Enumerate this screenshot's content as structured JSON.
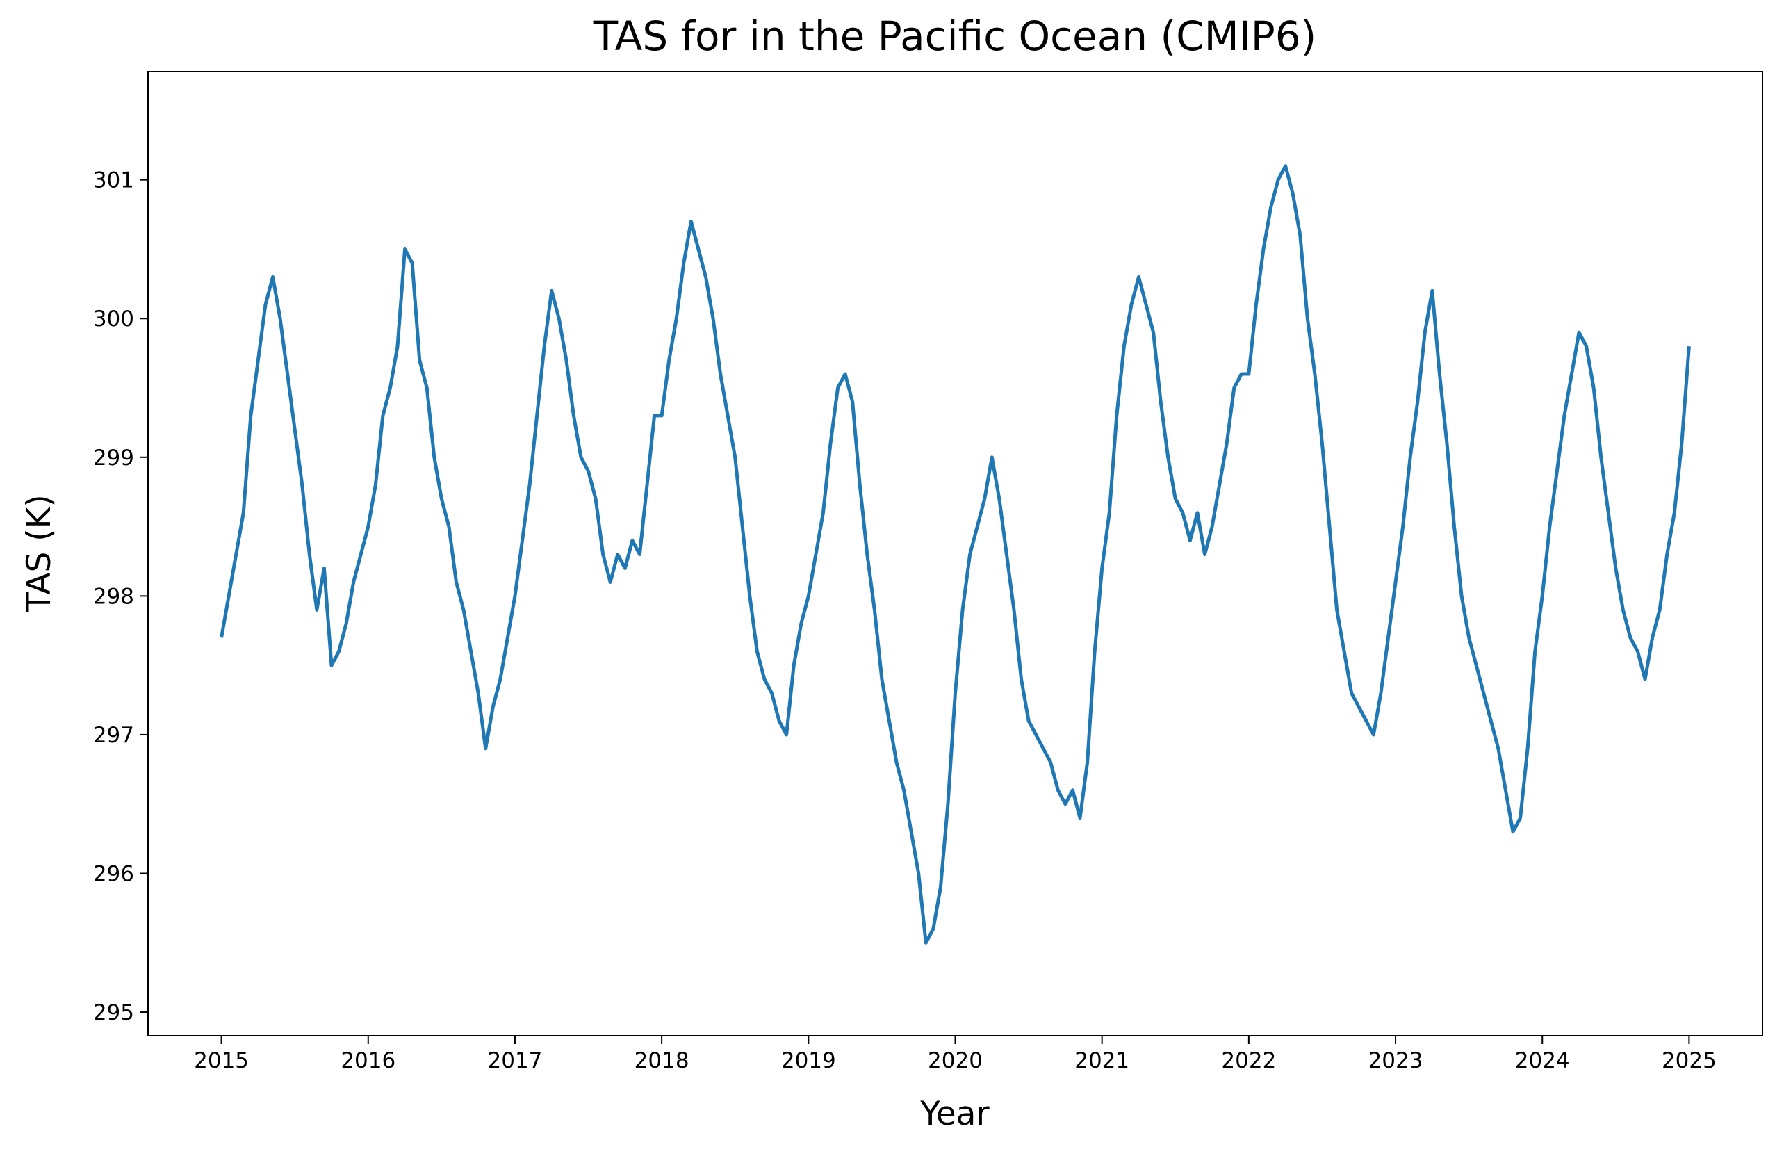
{
  "chart_data": {
    "type": "line",
    "title": "TAS for in the Pacific Ocean (CMIP6)",
    "xlabel": "Year",
    "ylabel": "TAS (K)",
    "xlim": [
      2014.5,
      2025.5
    ],
    "xticks": [
      2015,
      2016,
      2017,
      2018,
      2019,
      2020,
      2021,
      2022,
      2023,
      2024,
      2025
    ],
    "ylim": [
      294.83,
      301.78
    ],
    "yticks": [
      295,
      296,
      297,
      298,
      299,
      300,
      301
    ],
    "grid": false,
    "series": [
      {
        "name": "TAS",
        "color": "#1f77b4",
        "x": [
          2015,
          2015.05,
          2015.1,
          2015.15,
          2015.2,
          2015.25,
          2015.3,
          2015.35,
          2015.4,
          2015.45,
          2015.5,
          2015.55,
          2015.6,
          2015.65,
          2015.7,
          2015.75,
          2015.8,
          2015.85,
          2015.9,
          2015.95,
          2016,
          2016.05,
          2016.1,
          2016.15,
          2016.2,
          2016.25,
          2016.3,
          2016.35,
          2016.4,
          2016.45,
          2016.5,
          2016.55,
          2016.6,
          2016.65,
          2016.7,
          2016.75,
          2016.8,
          2016.85,
          2016.9,
          2016.95,
          2017,
          2017.05,
          2017.1,
          2017.15,
          2017.2,
          2017.25,
          2017.3,
          2017.35,
          2017.4,
          2017.45,
          2017.5,
          2017.55,
          2017.6,
          2017.65,
          2017.7,
          2017.75,
          2017.8,
          2017.85,
          2017.9,
          2017.95,
          2018,
          2018.05,
          2018.1,
          2018.15,
          2018.2,
          2018.25,
          2018.3,
          2018.35,
          2018.4,
          2018.45,
          2018.5,
          2018.55,
          2018.6,
          2018.65,
          2018.7,
          2018.75,
          2018.8,
          2018.85,
          2018.9,
          2018.95,
          2019,
          2019.05,
          2019.1,
          2019.15,
          2019.2,
          2019.25,
          2019.3,
          2019.35,
          2019.4,
          2019.45,
          2019.5,
          2019.55,
          2019.6,
          2019.65,
          2019.7,
          2019.75,
          2019.8,
          2019.85,
          2019.9,
          2019.95,
          2020,
          2020.05,
          2020.1,
          2020.15,
          2020.2,
          2020.25,
          2020.3,
          2020.35,
          2020.4,
          2020.45,
          2020.5,
          2020.55,
          2020.6,
          2020.65,
          2020.7,
          2020.75,
          2020.8,
          2020.85,
          2020.9,
          2020.95,
          2021,
          2021.05,
          2021.1,
          2021.15,
          2021.2,
          2021.25,
          2021.3,
          2021.35,
          2021.4,
          2021.45,
          2021.5,
          2021.55,
          2021.6,
          2021.65,
          2021.7,
          2021.75,
          2021.8,
          2021.85,
          2021.9,
          2021.95,
          2022,
          2022.05,
          2022.1,
          2022.15,
          2022.2,
          2022.25,
          2022.3,
          2022.35,
          2022.4,
          2022.45,
          2022.5,
          2022.55,
          2022.6,
          2022.65,
          2022.7,
          2022.75,
          2022.8,
          2022.85,
          2022.9,
          2022.95,
          2023,
          2023.05,
          2023.1,
          2023.15,
          2023.2,
          2023.25,
          2023.3,
          2023.35,
          2023.4,
          2023.45,
          2023.5,
          2023.55,
          2023.6,
          2023.65,
          2023.7,
          2023.75,
          2023.8,
          2023.85,
          2023.9,
          2023.95,
          2024,
          2024.05,
          2024.1,
          2024.15,
          2024.2,
          2024.25,
          2024.3,
          2024.35,
          2024.4,
          2024.45,
          2024.5,
          2024.55,
          2024.6,
          2024.65,
          2024.7,
          2024.75,
          2024.8,
          2024.85,
          2024.9,
          2024.95,
          2025
        ],
        "values": [
          297.7,
          298.0,
          298.3,
          298.6,
          299.3,
          299.7,
          300.1,
          300.3,
          300.0,
          299.6,
          299.2,
          298.8,
          298.3,
          297.9,
          298.2,
          297.5,
          297.6,
          297.8,
          298.1,
          298.3,
          298.5,
          298.8,
          299.3,
          299.5,
          299.8,
          300.5,
          300.4,
          299.7,
          299.5,
          299.0,
          298.7,
          298.5,
          298.1,
          297.9,
          297.6,
          297.3,
          296.9,
          297.2,
          297.4,
          297.7,
          298.0,
          298.4,
          298.8,
          299.3,
          299.8,
          300.2,
          300.0,
          299.7,
          299.3,
          299.0,
          298.9,
          298.7,
          298.3,
          298.1,
          298.3,
          298.2,
          298.4,
          298.3,
          298.8,
          299.3,
          299.3,
          299.7,
          300.0,
          300.4,
          300.7,
          300.5,
          300.3,
          300.0,
          299.6,
          299.3,
          299.0,
          298.5,
          298.0,
          297.6,
          297.4,
          297.3,
          297.1,
          297.0,
          297.5,
          297.8,
          298.0,
          298.3,
          298.6,
          299.1,
          299.5,
          299.6,
          299.4,
          298.8,
          298.3,
          297.9,
          297.4,
          297.1,
          296.8,
          296.6,
          296.3,
          296.0,
          295.5,
          295.6,
          295.9,
          296.5,
          297.3,
          297.9,
          298.3,
          298.5,
          298.7,
          299.0,
          298.7,
          298.3,
          297.9,
          297.4,
          297.1,
          297.0,
          296.9,
          296.8,
          296.6,
          296.5,
          296.6,
          296.4,
          296.8,
          297.6,
          298.2,
          298.6,
          299.3,
          299.8,
          300.1,
          300.3,
          300.1,
          299.9,
          299.4,
          299.0,
          298.7,
          298.6,
          298.4,
          298.6,
          298.3,
          298.5,
          298.8,
          299.1,
          299.5,
          299.6,
          299.6,
          300.1,
          300.5,
          300.8,
          301.0,
          301.1,
          300.9,
          300.6,
          300.0,
          299.6,
          299.1,
          298.5,
          297.9,
          297.6,
          297.3,
          297.2,
          297.1,
          297.0,
          297.3,
          297.7,
          298.1,
          298.5,
          299.0,
          299.4,
          299.9,
          300.2,
          299.6,
          299.1,
          298.5,
          298.0,
          297.7,
          297.5,
          297.3,
          297.1,
          296.9,
          296.6,
          296.3,
          296.4,
          296.9,
          297.6,
          298.0,
          298.5,
          298.9,
          299.3,
          299.6,
          299.9,
          299.8,
          299.5,
          299.0,
          298.6,
          298.2,
          297.9,
          297.7,
          297.6,
          297.4,
          297.7,
          297.9,
          298.3,
          298.6,
          299.1,
          299.8
        ]
      }
    ]
  }
}
